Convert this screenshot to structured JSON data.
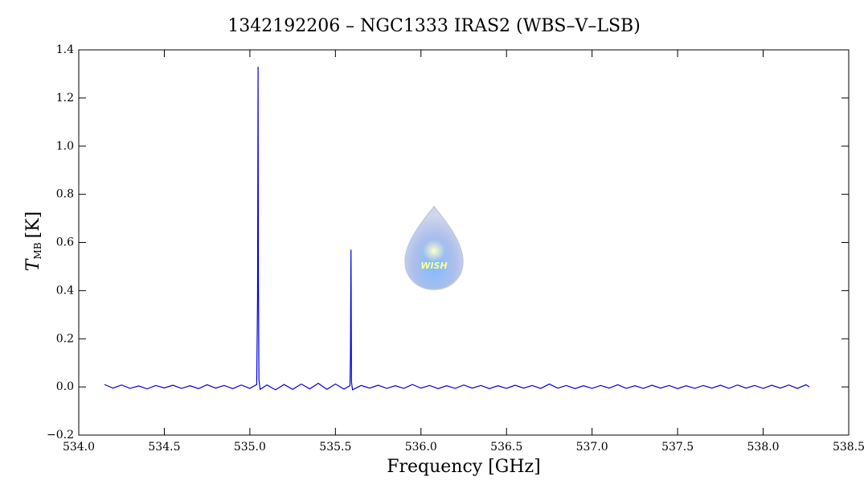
{
  "chart_data": {
    "type": "line",
    "title": "1342192206 – NGC1333 IRAS2 (WBS–V–LSB)",
    "xlabel": "Frequency [GHz]",
    "ylabel": {
      "symbol": "T",
      "subscript": "MB",
      "unit": "[K]"
    },
    "watermark": "WISH",
    "color": "#0000e0",
    "xlim": [
      534.0,
      538.5
    ],
    "ylim": [
      -0.2,
      1.4
    ],
    "xticks": [
      {
        "value": 534.0,
        "label": "534.0"
      },
      534.5,
      {
        "value": 535.0,
        "label": "535.0"
      },
      535.5,
      {
        "value": 536.0,
        "label": "536.0"
      },
      536.5,
      {
        "value": 537.0,
        "label": "537.0"
      },
      537.5,
      {
        "value": 538.0,
        "label": "538.0"
      },
      538.5
    ],
    "yticks": [
      {
        "value": -0.2,
        "label": "−0.2"
      },
      {
        "value": 0.0,
        "label": "0.0"
      },
      0.2,
      0.4,
      0.6,
      0.8,
      {
        "value": 1.0,
        "label": "1.0"
      },
      1.2,
      1.4
    ],
    "x": [
      534.15,
      534.2,
      534.25,
      534.3,
      534.35,
      534.4,
      534.45,
      534.5,
      534.55,
      534.6,
      534.65,
      534.7,
      534.75,
      534.8,
      534.85,
      534.9,
      534.95,
      535.0,
      535.04,
      535.045,
      535.048,
      535.05,
      535.053,
      535.06,
      535.1,
      535.15,
      535.2,
      535.25,
      535.3,
      535.35,
      535.4,
      535.45,
      535.5,
      535.55,
      535.585,
      535.588,
      535.591,
      535.594,
      535.6,
      535.65,
      535.7,
      535.75,
      535.8,
      535.85,
      535.9,
      535.95,
      536.0,
      536.05,
      536.1,
      536.15,
      536.2,
      536.25,
      536.3,
      536.35,
      536.4,
      536.45,
      536.5,
      536.55,
      536.6,
      536.65,
      536.7,
      536.75,
      536.8,
      536.85,
      536.9,
      536.95,
      537.0,
      537.05,
      537.1,
      537.15,
      537.2,
      537.25,
      537.3,
      537.35,
      537.4,
      537.45,
      537.5,
      537.55,
      537.6,
      537.65,
      537.7,
      537.75,
      537.8,
      537.85,
      537.9,
      537.95,
      538.0,
      538.05,
      538.1,
      538.15,
      538.2,
      538.25,
      538.27
    ],
    "values": [
      0.01,
      -0.005,
      0.008,
      -0.006,
      0.004,
      -0.008,
      0.006,
      -0.004,
      0.007,
      -0.006,
      0.005,
      -0.007,
      0.009,
      -0.005,
      0.006,
      -0.007,
      0.008,
      -0.006,
      0.01,
      0.37,
      1.33,
      0.46,
      0.03,
      -0.01,
      0.008,
      -0.012,
      0.01,
      -0.01,
      0.012,
      -0.008,
      0.015,
      -0.01,
      0.012,
      -0.009,
      0.005,
      0.13,
      0.57,
      0.02,
      -0.012,
      0.006,
      -0.005,
      0.007,
      -0.006,
      0.005,
      -0.006,
      0.01,
      -0.005,
      0.006,
      -0.007,
      0.005,
      -0.006,
      0.008,
      -0.005,
      0.006,
      -0.007,
      0.005,
      -0.006,
      0.007,
      -0.005,
      0.006,
      -0.006,
      0.012,
      -0.005,
      0.006,
      -0.007,
      0.005,
      -0.006,
      0.006,
      -0.005,
      0.009,
      -0.006,
      0.005,
      -0.006,
      0.007,
      -0.005,
      0.006,
      -0.007,
      0.005,
      -0.006,
      0.006,
      -0.005,
      0.007,
      -0.006,
      0.008,
      -0.005,
      0.006,
      -0.006,
      0.007,
      -0.005,
      0.008,
      -0.006,
      0.009,
      0.0
    ]
  }
}
